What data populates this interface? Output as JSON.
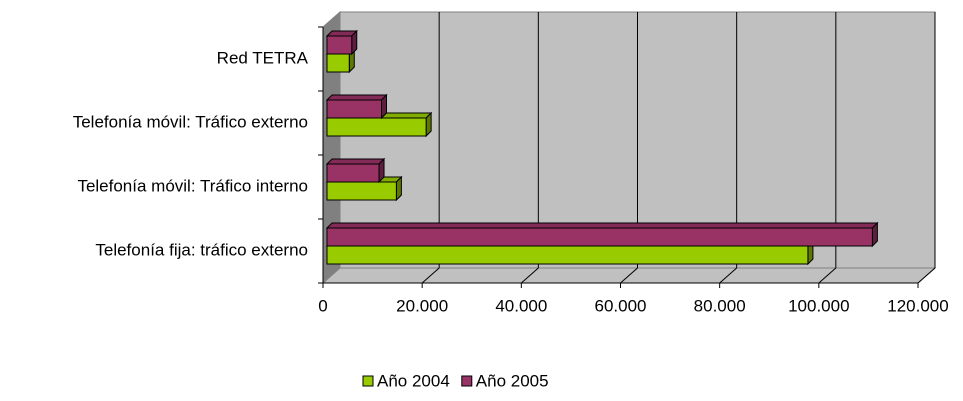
{
  "chart_data": {
    "type": "bar3d_horizontal",
    "categories": [
      "Telefonía fija: tráfico externo",
      "Telefonía móvil: Tráfico interno",
      "Telefonía móvil: Tráfico externo",
      "Red TETRA"
    ],
    "series": [
      {
        "name": "Año 2004",
        "color": "#99cc00",
        "values": [
          98000,
          15000,
          21000,
          5500
        ]
      },
      {
        "name": "Año 2005",
        "color": "#993366",
        "values": [
          111000,
          11500,
          12000,
          6000
        ]
      }
    ],
    "xlim": [
      0,
      120000
    ],
    "xticks": [
      0,
      {
        "value": 20000,
        "label": "20.000"
      },
      {
        "value": 40000,
        "label": "40.000"
      },
      {
        "value": 60000,
        "label": "60.000"
      },
      {
        "value": 80000,
        "label": "80.000"
      },
      {
        "value": 100000,
        "label": "100.000"
      },
      {
        "value": 120000,
        "label": "120.000"
      }
    ],
    "grid": true,
    "legend": "bottom"
  }
}
